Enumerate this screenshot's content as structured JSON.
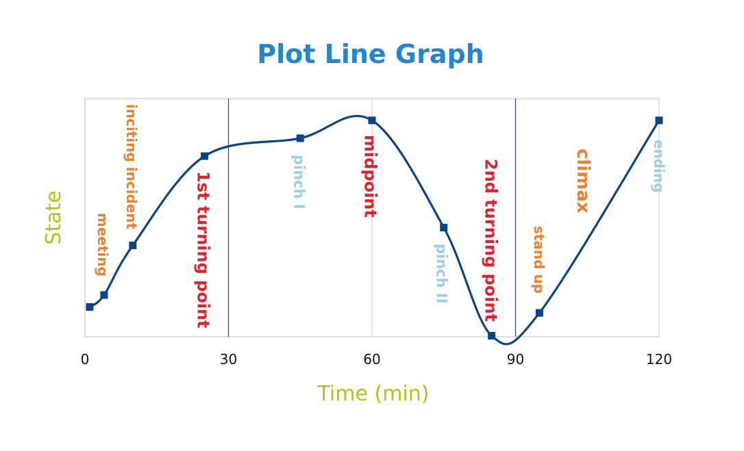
{
  "chart_data": {
    "type": "line",
    "title": "Plot Line Graph",
    "xlabel": "Time (min)",
    "ylabel": "State",
    "xlim": [
      0,
      120
    ],
    "ylim": [
      0,
      12
    ],
    "xticks": [
      "0",
      "30",
      "60",
      "90",
      "120"
    ],
    "grid": "vertical",
    "colors": {
      "title": "#1f86cf",
      "axis_titles": "#a8c71c",
      "line": "#0b4387",
      "marker": "#0b4387",
      "divider": "#2d3fa0",
      "orange": "#f07f2b",
      "red": "#e0202a",
      "light_blue": "#9ad0e6"
    },
    "series": [
      {
        "name": "",
        "x": [
          1,
          4,
          10,
          25,
          45,
          60,
          75,
          85,
          95,
          120
        ],
        "y": [
          1.5,
          2.1,
          4.6,
          9.1,
          10.0,
          10.9,
          5.5,
          0.05,
          1.2,
          10.9
        ]
      }
    ],
    "annotations": [
      {
        "text": "meeting",
        "x": 4,
        "color": "orange",
        "size": 20
      },
      {
        "text": "inciting incident",
        "x": 10,
        "color": "orange",
        "size": 20
      },
      {
        "text": "1st turning point",
        "x": 25,
        "color": "red",
        "size": 24
      },
      {
        "text": "pinch I",
        "x": 45,
        "color": "light_blue",
        "size": 21
      },
      {
        "text": "midpoint",
        "x": 60,
        "color": "red",
        "size": 24
      },
      {
        "text": "pinch II",
        "x": 75,
        "color": "light_blue",
        "size": 21
      },
      {
        "text": "2nd turning point",
        "x": 85,
        "color": "red",
        "size": 24
      },
      {
        "text": "stand up",
        "x": 95,
        "color": "orange",
        "size": 20
      },
      {
        "text": "climax",
        "x": 104,
        "color": "orange",
        "size": 26
      },
      {
        "text": "ending",
        "x": 120,
        "color": "light_blue",
        "size": 20
      }
    ]
  }
}
